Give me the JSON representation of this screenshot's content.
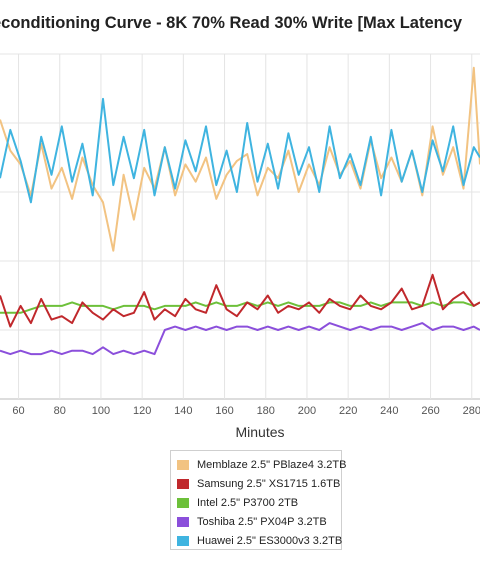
{
  "chart_data": {
    "type": "line",
    "title": "econditioning Curve - 8K 70% Read 30% Write [Max Latency",
    "xlabel": "Minutes",
    "ylabel": "",
    "xlim": [
      51,
      284
    ],
    "ylim": [
      0,
      10
    ],
    "x_ticks": [
      60,
      80,
      100,
      120,
      140,
      160,
      180,
      200,
      220,
      240,
      260,
      280
    ],
    "grid": true,
    "legend_position": "bottom-center",
    "x": [
      51,
      56,
      61,
      66,
      71,
      76,
      81,
      86,
      91,
      96,
      101,
      106,
      111,
      116,
      121,
      126,
      131,
      136,
      141,
      146,
      151,
      156,
      161,
      166,
      171,
      176,
      181,
      186,
      191,
      196,
      201,
      206,
      211,
      216,
      221,
      226,
      231,
      236,
      241,
      246,
      251,
      256,
      261,
      266,
      271,
      276,
      281,
      284
    ],
    "series": [
      {
        "name": "Memblaze 2.5\" PBlaze4 3.2TB",
        "color": "#F2C382",
        "values": [
          8.1,
          7.2,
          6.8,
          5.9,
          7.4,
          6.1,
          6.7,
          5.8,
          7.0,
          6.2,
          5.7,
          4.3,
          6.5,
          5.2,
          6.7,
          6.1,
          7.3,
          5.9,
          6.8,
          6.3,
          7.0,
          5.8,
          6.5,
          6.9,
          7.1,
          5.9,
          6.7,
          6.4,
          7.2,
          6.0,
          6.8,
          6.2,
          7.3,
          6.5,
          6.9,
          6.1,
          7.5,
          6.4,
          7.0,
          6.3,
          7.2,
          5.9,
          7.9,
          6.5,
          7.3,
          6.1,
          9.6,
          6.8
        ]
      },
      {
        "name": "Samsung 2.5\" XS1715 1.6TB",
        "color": "#C0282C",
        "values": [
          3.0,
          2.1,
          2.7,
          2.2,
          2.9,
          2.3,
          2.4,
          2.2,
          2.8,
          2.5,
          2.3,
          2.6,
          2.4,
          2.5,
          3.1,
          2.3,
          2.6,
          2.4,
          2.9,
          2.6,
          2.5,
          3.3,
          2.6,
          2.4,
          2.8,
          2.6,
          3.0,
          2.5,
          2.7,
          2.6,
          2.8,
          2.5,
          2.9,
          2.7,
          2.6,
          3.0,
          2.7,
          2.6,
          2.8,
          3.2,
          2.6,
          2.7,
          3.6,
          2.6,
          2.9,
          3.1,
          2.7,
          2.8
        ]
      },
      {
        "name": "Intel 2.5\" P3700 2TB",
        "color": "#6DC03A",
        "values": [
          2.5,
          2.5,
          2.5,
          2.6,
          2.7,
          2.7,
          2.7,
          2.8,
          2.7,
          2.7,
          2.7,
          2.6,
          2.7,
          2.7,
          2.7,
          2.6,
          2.7,
          2.7,
          2.7,
          2.8,
          2.7,
          2.8,
          2.7,
          2.7,
          2.8,
          2.7,
          2.8,
          2.7,
          2.8,
          2.7,
          2.7,
          2.7,
          2.8,
          2.8,
          2.7,
          2.7,
          2.8,
          2.7,
          2.8,
          2.8,
          2.8,
          2.7,
          2.8,
          2.7,
          2.8,
          2.8,
          2.7,
          2.8
        ]
      },
      {
        "name": "Toshiba 2.5\" PX04P 3.2TB",
        "color": "#8B4FDB",
        "values": [
          1.4,
          1.3,
          1.4,
          1.3,
          1.3,
          1.4,
          1.3,
          1.4,
          1.4,
          1.3,
          1.5,
          1.3,
          1.4,
          1.3,
          1.4,
          1.3,
          2.0,
          2.1,
          2.0,
          2.1,
          2.0,
          2.1,
          2.0,
          2.1,
          2.1,
          2.0,
          2.1,
          2.0,
          2.1,
          2.0,
          2.1,
          2.0,
          2.2,
          2.1,
          2.0,
          2.1,
          2.0,
          2.1,
          2.1,
          2.0,
          2.1,
          2.2,
          2.0,
          2.1,
          2.1,
          2.0,
          2.1,
          2.0
        ]
      },
      {
        "name": "Huawei 2.5\" ES3000v3 3.2TB",
        "color": "#3FB4E0",
        "values": [
          6.4,
          7.8,
          6.9,
          5.7,
          7.6,
          6.5,
          7.9,
          6.3,
          7.4,
          5.9,
          8.7,
          6.2,
          7.6,
          6.4,
          7.8,
          5.9,
          7.3,
          6.1,
          7.5,
          6.6,
          7.9,
          6.2,
          7.2,
          6.0,
          8.0,
          6.3,
          7.4,
          6.1,
          7.7,
          6.5,
          7.3,
          6.0,
          7.9,
          6.4,
          7.1,
          6.2,
          7.6,
          5.9,
          7.8,
          6.3,
          7.2,
          6.0,
          7.5,
          6.6,
          7.9,
          6.2,
          7.3,
          7.0
        ]
      }
    ]
  }
}
